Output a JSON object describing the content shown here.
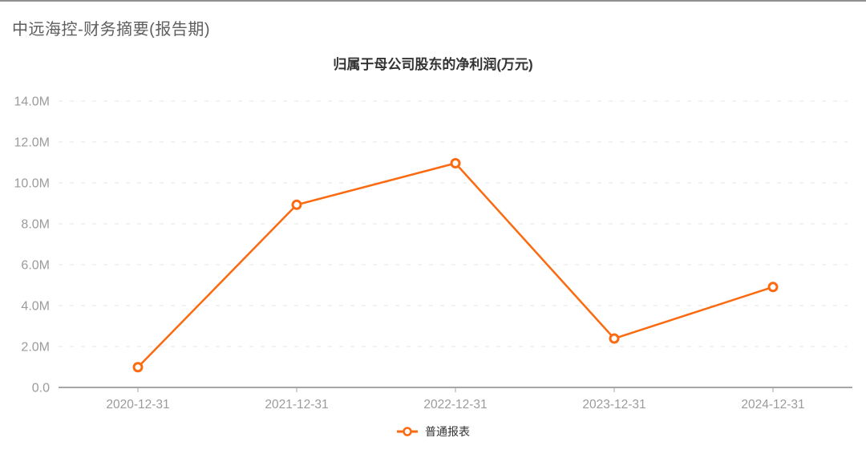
{
  "page": {
    "title": "中远海控-财务摘要(报告期)"
  },
  "chart_data": {
    "type": "line",
    "title": "归属于母公司股东的净利润(万元)",
    "categories": [
      "2020-12-31",
      "2021-12-31",
      "2022-12-31",
      "2023-12-31",
      "2024-12-31"
    ],
    "series": [
      {
        "name": "普通报表",
        "color": "#fb6a10",
        "marker": "ring",
        "values_wanyuan": [
          990000,
          8930000,
          10960000,
          2390000,
          4910000
        ]
      }
    ],
    "xlabel": "",
    "ylabel": "",
    "y_axis": {
      "min": 0,
      "max": 14000000,
      "step": 2000000,
      "tick_labels": [
        "0.0",
        "2.0M",
        "4.0M",
        "6.0M",
        "8.0M",
        "10.0M",
        "12.0M",
        "14.0M"
      ],
      "label_color": "#9b9b9b"
    },
    "x_axis": {
      "label_color": "#9b9b9b",
      "axis_line_color": "#a6a6a6"
    },
    "grid": {
      "on": true,
      "dashed": true,
      "color": "#e4e4e4"
    },
    "legend": {
      "position": "bottom",
      "items": [
        "普通报表"
      ]
    }
  }
}
